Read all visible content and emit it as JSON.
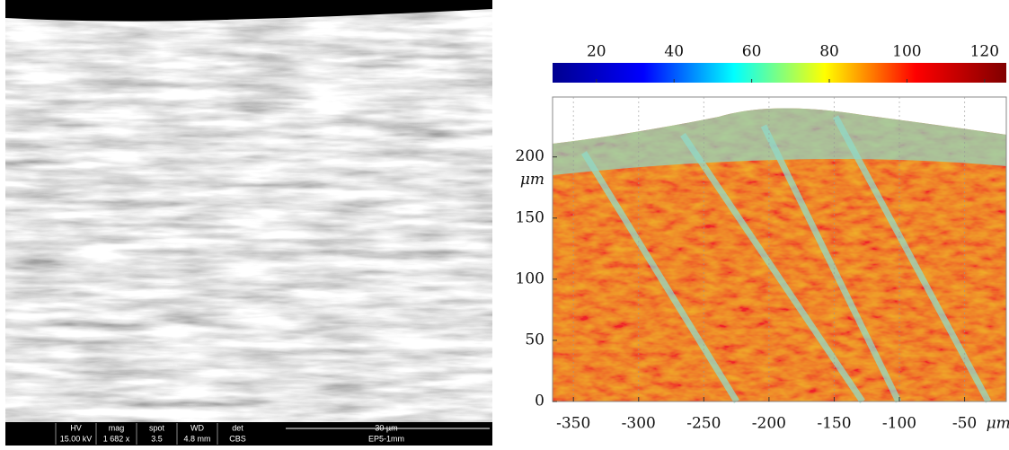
{
  "sem_image": {
    "labels": [
      "HV",
      "mag",
      "spot",
      "WD",
      "det"
    ],
    "values": [
      "15.00 kV",
      "1 682 x",
      "3.5",
      "4.8 mm",
      "CBS"
    ],
    "scale": "30 µm",
    "sample": "EP5-1mm"
  },
  "chart_data": {
    "type": "heatmap",
    "colormap": "jet",
    "clim": [
      8.7,
      125.6
    ],
    "cticks": [
      20,
      40,
      60,
      80,
      100,
      120
    ],
    "xlim": [
      -366,
      -18
    ],
    "xticks": [
      -350,
      -300,
      -250,
      -200,
      -150,
      -100,
      -50
    ],
    "xlabel": "μm",
    "ylim": [
      0,
      249
    ],
    "yticks": [
      0,
      50,
      100,
      150,
      200
    ],
    "ylabel": "μm"
  }
}
